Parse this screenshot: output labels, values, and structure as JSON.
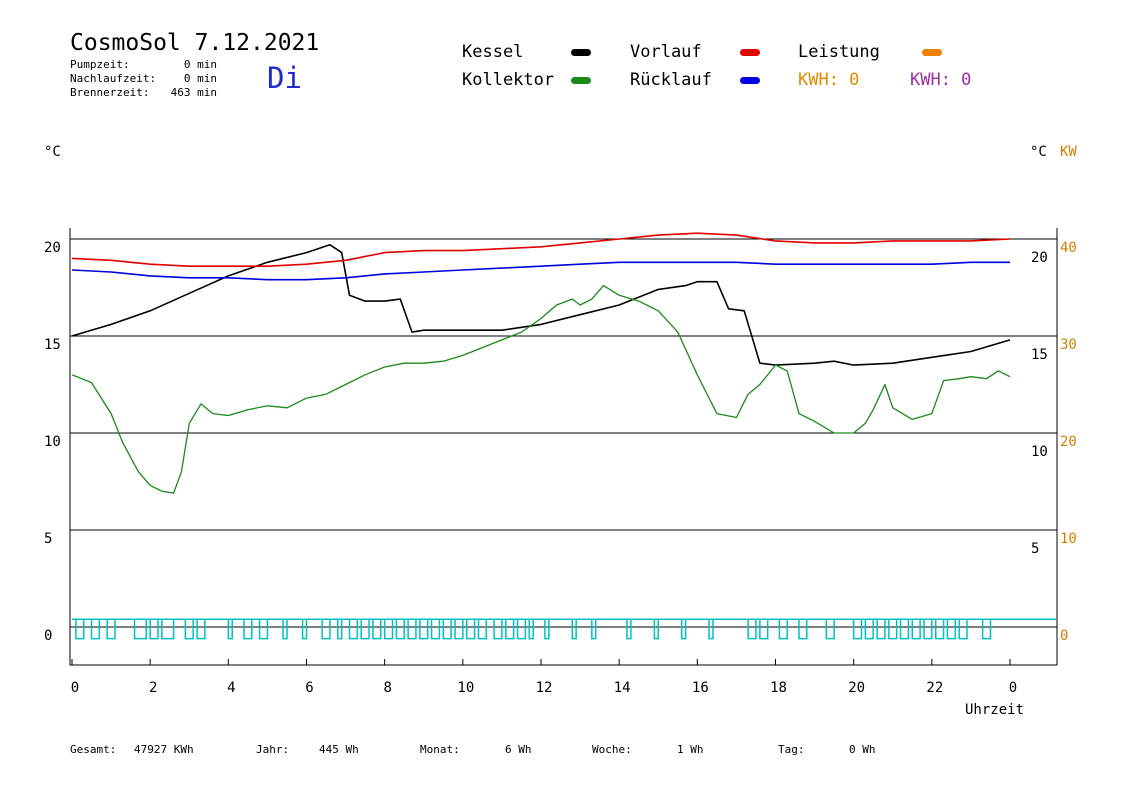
{
  "header": {
    "title": "CosmoSol 7.12.2021",
    "day": "Di",
    "day_color": "#1f2bd0",
    "stats": [
      {
        "label": "Pumpzeit:",
        "value": "0 min"
      },
      {
        "label": "Nachlaufzeit:",
        "value": "0 min"
      },
      {
        "label": "Brennerzeit:",
        "value": "463 min"
      }
    ]
  },
  "legend": {
    "items": [
      {
        "name": "Kessel",
        "color": "#000000"
      },
      {
        "name": "Vorlauf",
        "color": "#e00000"
      },
      {
        "name": "Leistung",
        "color": "#f08000"
      },
      {
        "name": "Kollektor",
        "color": "#1a8a1a"
      },
      {
        "name": "Rücklauf",
        "color": "#0000e0"
      }
    ],
    "kwh1": "KWH: 0",
    "kwh1_color": "#e08a00",
    "kwh2": "KWH: 0",
    "kwh2_color": "#9a30a0"
  },
  "axes": {
    "left_unit": "°C",
    "right_unit": "°C",
    "right_unit2": "KW",
    "right_unit2_color": "#d08000",
    "xlabel": "Uhrzeit"
  },
  "footer": [
    {
      "label": "Gesamt:",
      "value": "47927 KWh"
    },
    {
      "label": "Jahr:",
      "value": "445 Wh"
    },
    {
      "label": "Monat:",
      "value": "6 Wh"
    },
    {
      "label": "Woche:",
      "value": "1 Wh"
    },
    {
      "label": "Tag:",
      "value": "0 Wh"
    }
  ],
  "chart_data": {
    "type": "line",
    "title": "CosmoSol 7.12.2021",
    "xlabel": "Uhrzeit",
    "ylabel": "°C",
    "xlim": [
      0,
      24
    ],
    "ylim": [
      -2,
      21
    ],
    "x_ticks": [
      "0",
      "2",
      "4",
      "6",
      "8",
      "10",
      "12",
      "14",
      "16",
      "18",
      "20",
      "22",
      "0"
    ],
    "y_ticks_left": [
      "20",
      "15",
      "10",
      "5",
      "0"
    ],
    "y_ticks_right_celsius": [
      "20",
      "15",
      "10",
      "5"
    ],
    "y_ticks_right_kw": [
      "40",
      "30",
      "20",
      "10",
      "0"
    ],
    "grid": "horizontal",
    "series": [
      {
        "name": "Kessel",
        "color": "#000000",
        "points": [
          [
            0,
            15.0
          ],
          [
            1,
            15.6
          ],
          [
            2,
            16.3
          ],
          [
            3,
            17.2
          ],
          [
            4,
            18.1
          ],
          [
            5,
            18.8
          ],
          [
            6,
            19.3
          ],
          [
            6.6,
            19.7
          ],
          [
            6.9,
            19.3
          ],
          [
            7.1,
            17.1
          ],
          [
            7.5,
            16.8
          ],
          [
            8,
            16.8
          ],
          [
            8.4,
            16.9
          ],
          [
            8.7,
            15.2
          ],
          [
            9,
            15.3
          ],
          [
            10,
            15.3
          ],
          [
            11,
            15.3
          ],
          [
            12,
            15.6
          ],
          [
            13,
            16.1
          ],
          [
            14,
            16.6
          ],
          [
            15,
            17.4
          ],
          [
            15.7,
            17.6
          ],
          [
            16,
            17.8
          ],
          [
            16.5,
            17.8
          ],
          [
            16.8,
            16.4
          ],
          [
            17.2,
            16.3
          ],
          [
            17.6,
            13.6
          ],
          [
            18,
            13.5
          ],
          [
            19,
            13.6
          ],
          [
            19.5,
            13.7
          ],
          [
            20,
            13.5
          ],
          [
            21,
            13.6
          ],
          [
            22,
            13.9
          ],
          [
            23,
            14.2
          ],
          [
            24,
            14.8
          ]
        ]
      },
      {
        "name": "Vorlauf",
        "color": "#e00000",
        "points": [
          [
            0,
            19.0
          ],
          [
            1,
            18.9
          ],
          [
            2,
            18.7
          ],
          [
            3,
            18.6
          ],
          [
            4,
            18.6
          ],
          [
            5,
            18.6
          ],
          [
            6,
            18.7
          ],
          [
            7,
            18.9
          ],
          [
            8,
            19.3
          ],
          [
            9,
            19.4
          ],
          [
            10,
            19.4
          ],
          [
            11,
            19.5
          ],
          [
            12,
            19.6
          ],
          [
            13,
            19.8
          ],
          [
            14,
            20.0
          ],
          [
            15,
            20.2
          ],
          [
            16,
            20.3
          ],
          [
            17,
            20.2
          ],
          [
            18,
            19.9
          ],
          [
            19,
            19.8
          ],
          [
            20,
            19.8
          ],
          [
            21,
            19.9
          ],
          [
            22,
            19.9
          ],
          [
            23,
            19.9
          ],
          [
            24,
            20.0
          ]
        ]
      },
      {
        "name": "Rücklauf",
        "color": "#0000e0",
        "points": [
          [
            0,
            18.4
          ],
          [
            1,
            18.3
          ],
          [
            2,
            18.1
          ],
          [
            3,
            18.0
          ],
          [
            4,
            18.0
          ],
          [
            5,
            17.9
          ],
          [
            6,
            17.9
          ],
          [
            7,
            18.0
          ],
          [
            8,
            18.2
          ],
          [
            9,
            18.3
          ],
          [
            10,
            18.4
          ],
          [
            11,
            18.5
          ],
          [
            12,
            18.6
          ],
          [
            13,
            18.7
          ],
          [
            14,
            18.8
          ],
          [
            15,
            18.8
          ],
          [
            16,
            18.8
          ],
          [
            17,
            18.8
          ],
          [
            18,
            18.7
          ],
          [
            19,
            18.7
          ],
          [
            20,
            18.7
          ],
          [
            21,
            18.7
          ],
          [
            22,
            18.7
          ],
          [
            23,
            18.8
          ],
          [
            24,
            18.8
          ]
        ]
      },
      {
        "name": "Kollektor",
        "color": "#1a8a1a",
        "points": [
          [
            0,
            13.0
          ],
          [
            0.5,
            12.6
          ],
          [
            1,
            11.0
          ],
          [
            1.3,
            9.5
          ],
          [
            1.7,
            8.0
          ],
          [
            2,
            7.3
          ],
          [
            2.3,
            7.0
          ],
          [
            2.6,
            6.9
          ],
          [
            2.8,
            8.0
          ],
          [
            3,
            10.5
          ],
          [
            3.3,
            11.5
          ],
          [
            3.6,
            11.0
          ],
          [
            4,
            10.9
          ],
          [
            4.5,
            11.2
          ],
          [
            5,
            11.4
          ],
          [
            5.5,
            11.3
          ],
          [
            6,
            11.8
          ],
          [
            6.5,
            12.0
          ],
          [
            7,
            12.5
          ],
          [
            7.5,
            13.0
          ],
          [
            8,
            13.4
          ],
          [
            8.5,
            13.6
          ],
          [
            9,
            13.6
          ],
          [
            9.5,
            13.7
          ],
          [
            10,
            14.0
          ],
          [
            10.5,
            14.4
          ],
          [
            11,
            14.8
          ],
          [
            11.5,
            15.2
          ],
          [
            12,
            15.9
          ],
          [
            12.4,
            16.6
          ],
          [
            12.8,
            16.9
          ],
          [
            13,
            16.6
          ],
          [
            13.3,
            16.9
          ],
          [
            13.6,
            17.6
          ],
          [
            14,
            17.1
          ],
          [
            14.5,
            16.8
          ],
          [
            15,
            16.3
          ],
          [
            15.5,
            15.2
          ],
          [
            16,
            13.0
          ],
          [
            16.5,
            11.0
          ],
          [
            17,
            10.8
          ],
          [
            17.3,
            12.0
          ],
          [
            17.6,
            12.5
          ],
          [
            18,
            13.5
          ],
          [
            18.3,
            13.2
          ],
          [
            18.6,
            11.0
          ],
          [
            19,
            10.6
          ],
          [
            19.5,
            10.0
          ],
          [
            20,
            10.0
          ],
          [
            20.3,
            10.5
          ],
          [
            20.5,
            11.2
          ],
          [
            20.8,
            12.5
          ],
          [
            21,
            11.3
          ],
          [
            21.5,
            10.7
          ],
          [
            22,
            11.0
          ],
          [
            22.3,
            12.7
          ],
          [
            22.7,
            12.8
          ],
          [
            23,
            12.9
          ],
          [
            23.4,
            12.8
          ],
          [
            23.7,
            13.2
          ],
          [
            24,
            12.9
          ]
        ]
      }
    ],
    "burner_pulses": {
      "color": "#00c0c0",
      "level_top": 0.4,
      "level_bottom": -0.6,
      "intervals": [
        [
          0.1,
          0.3
        ],
        [
          0.5,
          0.7
        ],
        [
          0.9,
          1.1
        ],
        [
          1.6,
          1.9
        ],
        [
          2.0,
          2.2
        ],
        [
          2.3,
          2.6
        ],
        [
          2.9,
          3.1
        ],
        [
          3.2,
          3.4
        ],
        [
          4.0,
          4.1
        ],
        [
          4.4,
          4.6
        ],
        [
          4.8,
          5.0
        ],
        [
          5.4,
          5.5
        ],
        [
          5.9,
          6.0
        ],
        [
          6.4,
          6.6
        ],
        [
          6.8,
          6.9
        ],
        [
          7.1,
          7.3
        ],
        [
          7.4,
          7.6
        ],
        [
          7.7,
          7.9
        ],
        [
          8.0,
          8.2
        ],
        [
          8.3,
          8.5
        ],
        [
          8.6,
          8.8
        ],
        [
          8.9,
          9.1
        ],
        [
          9.2,
          9.4
        ],
        [
          9.5,
          9.7
        ],
        [
          9.8,
          10.0
        ],
        [
          10.1,
          10.3
        ],
        [
          10.4,
          10.6
        ],
        [
          10.8,
          11.0
        ],
        [
          11.1,
          11.3
        ],
        [
          11.4,
          11.6
        ],
        [
          11.7,
          11.8
        ],
        [
          12.1,
          12.2
        ],
        [
          12.8,
          12.9
        ],
        [
          13.3,
          13.4
        ],
        [
          14.2,
          14.3
        ],
        [
          14.9,
          15.0
        ],
        [
          15.6,
          15.7
        ],
        [
          16.3,
          16.4
        ],
        [
          17.3,
          17.5
        ],
        [
          17.6,
          17.8
        ],
        [
          18.1,
          18.3
        ],
        [
          18.6,
          18.8
        ],
        [
          19.3,
          19.5
        ],
        [
          20.0,
          20.2
        ],
        [
          20.3,
          20.5
        ],
        [
          20.6,
          20.8
        ],
        [
          20.9,
          21.1
        ],
        [
          21.2,
          21.4
        ],
        [
          21.5,
          21.7
        ],
        [
          21.8,
          22.0
        ],
        [
          22.1,
          22.3
        ],
        [
          22.4,
          22.6
        ],
        [
          22.7,
          22.9
        ],
        [
          23.3,
          23.5
        ]
      ]
    }
  }
}
